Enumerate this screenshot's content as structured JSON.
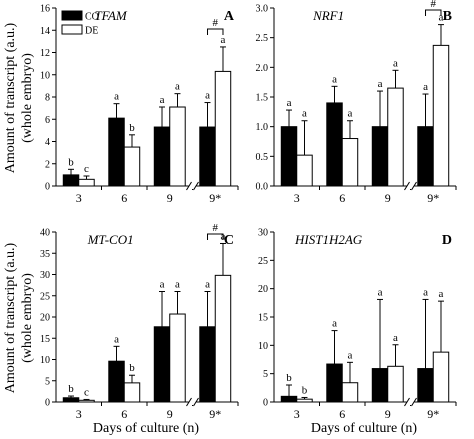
{
  "figure": {
    "ylabel_line1": "Amount of transcript (a.u.)",
    "ylabel_line2": "(whole embryo)",
    "xlabel": "Days of culture (n)",
    "legend": [
      {
        "label": "CO",
        "color": "#000000"
      },
      {
        "label": "DE",
        "color": "#ffffff"
      }
    ]
  },
  "chart_data": [
    {
      "type": "bar",
      "panel": "A",
      "gene": "TFAM",
      "categories": [
        "3",
        "6",
        "9",
        "9*"
      ],
      "ylim": [
        0,
        16
      ],
      "yticks": [
        0,
        2,
        4,
        6,
        8,
        10,
        12,
        14,
        16
      ],
      "series": [
        {
          "name": "CO",
          "values": [
            1.0,
            6.1,
            5.3,
            5.3
          ],
          "errors": [
            0.5,
            1.3,
            1.8,
            2.2
          ],
          "letters": [
            "b",
            "a",
            "a",
            "a"
          ]
        },
        {
          "name": "DE",
          "values": [
            0.6,
            3.5,
            7.1,
            10.3
          ],
          "errors": [
            0.3,
            1.1,
            1.2,
            2.2
          ],
          "letters": [
            "c",
            "b",
            "a",
            "a"
          ]
        }
      ],
      "significance": "#"
    },
    {
      "type": "bar",
      "panel": "B",
      "gene": "NRF1",
      "categories": [
        "3",
        "6",
        "9",
        "9*"
      ],
      "ylim": [
        0,
        3.0
      ],
      "yticks": [
        0.0,
        0.5,
        1.0,
        1.5,
        2.0,
        2.5,
        3.0
      ],
      "series": [
        {
          "name": "CO",
          "values": [
            1.0,
            1.4,
            1.0,
            1.0
          ],
          "errors": [
            0.28,
            0.28,
            0.6,
            0.55
          ],
          "letters": [
            "a",
            "a",
            "a",
            "a"
          ]
        },
        {
          "name": "DE",
          "values": [
            0.52,
            0.8,
            1.65,
            2.37
          ],
          "errors": [
            0.58,
            0.3,
            0.3,
            0.35
          ],
          "letters": [
            "a",
            "a",
            "a",
            "a"
          ]
        }
      ],
      "significance": "#"
    },
    {
      "type": "bar",
      "panel": "C",
      "gene": "MT-CO1",
      "categories": [
        "3",
        "6",
        "9",
        "9*"
      ],
      "ylim": [
        0,
        40
      ],
      "yticks": [
        0,
        5,
        10,
        15,
        20,
        25,
        30,
        35,
        40
      ],
      "series": [
        {
          "name": "CO",
          "values": [
            1.0,
            9.6,
            17.7,
            17.7
          ],
          "errors": [
            0.4,
            3.5,
            8.3,
            8.3
          ],
          "letters": [
            "b",
            "a",
            "a",
            "a"
          ]
        },
        {
          "name": "DE",
          "values": [
            0.4,
            4.5,
            20.7,
            29.8
          ],
          "errors": [
            0.2,
            1.8,
            5.3,
            7.5
          ],
          "letters": [
            "c",
            "b",
            "a",
            "a"
          ]
        }
      ],
      "significance": "#"
    },
    {
      "type": "bar",
      "panel": "D",
      "gene": "HIST1H2AG",
      "categories": [
        "3",
        "6",
        "9",
        "9*"
      ],
      "ylim": [
        0,
        30
      ],
      "yticks": [
        0,
        5,
        10,
        15,
        20,
        25,
        30
      ],
      "series": [
        {
          "name": "CO",
          "values": [
            1.0,
            6.7,
            5.9,
            5.9
          ],
          "errors": [
            2.0,
            5.9,
            12.2,
            12.2
          ],
          "letters": [
            "b",
            "a",
            "a",
            "a"
          ]
        },
        {
          "name": "DE",
          "values": [
            0.5,
            3.4,
            6.3,
            8.8
          ],
          "errors": [
            0.3,
            3.6,
            3.8,
            9.0
          ],
          "letters": [
            "b",
            "a",
            "a",
            "a"
          ]
        }
      ],
      "significance": ""
    }
  ]
}
